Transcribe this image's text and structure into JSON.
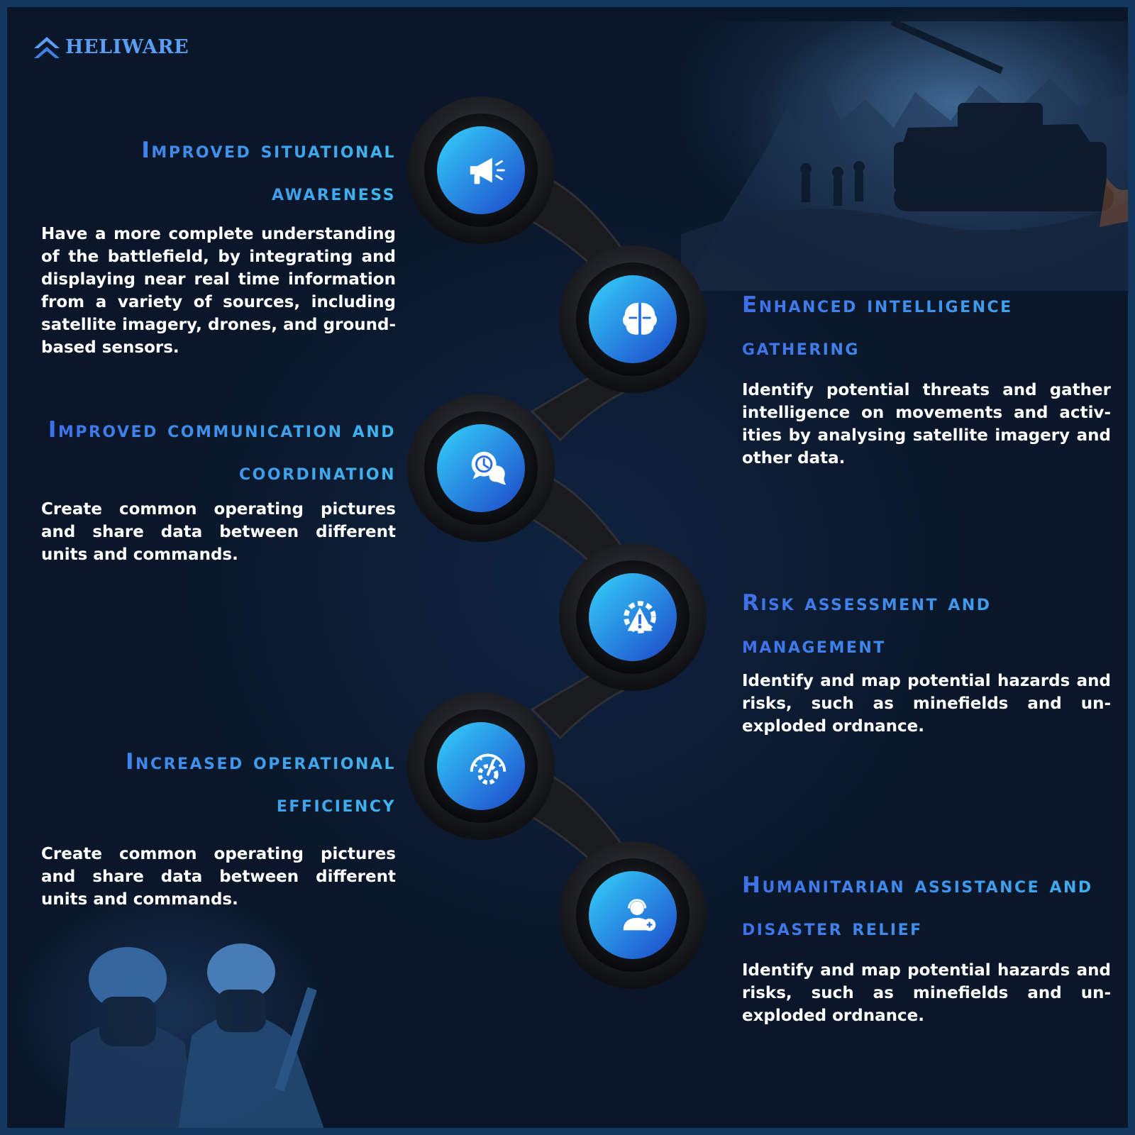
{
  "brand": {
    "name": "HELIWARE",
    "logo_icon": "double-chevron-up-icon",
    "color": "#5b9df0"
  },
  "colors": {
    "title_gradient_start": "#3f6fe8",
    "title_gradient_end": "#3fb6ee",
    "body_text": "#ffffff",
    "background": "#0b1a2e",
    "icon_gradient_start": "#2ec4f5",
    "icon_gradient_end": "#1d4fcf",
    "chain": "#1b1d21"
  },
  "features": [
    {
      "title": "Improved situational awareness",
      "body": "Have a more complete understand­ing of the battlefield, by integrating and displaying near real time infor­mation from a variety of sources, in­cluding satellite imagery, drones, and ground-based sensors.",
      "icon": "megaphone-icon"
    },
    {
      "title": "Enhanced intelligence gathering",
      "body": "Identify potential threats and gather intelligence on movements and activ­ities by analysing satellite imagery and other data.",
      "icon": "brain-puzzle-icon"
    },
    {
      "title": "Improved communication and coordination",
      "body": "Create common operating pictures and share data between different units and commands.",
      "icon": "chat-clock-icon"
    },
    {
      "title": "Risk assessment and management",
      "body": "Identify and map potential hazards and risks, such as minefields and un­exploded ordnance.",
      "icon": "gear-warning-icon"
    },
    {
      "title": "Increased operational efficiency",
      "body": "Create common operating pictures and share data between different units and commands.",
      "icon": "gear-gauge-icon"
    },
    {
      "title": "Humanitarian assistance and disaster relief",
      "body": "Identify and map potential hazards and risks, such as minefields and un­exploded ordnance.",
      "icon": "support-agent-icon"
    }
  ]
}
